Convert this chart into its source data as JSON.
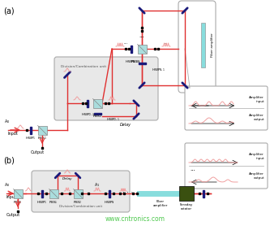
{
  "fig_width": 3.33,
  "fig_height": 2.83,
  "dpi": 100,
  "bg_color": "#ffffff",
  "label_a": "(a)",
  "label_b": "(b)",
  "watermark": "www.cntronics.com",
  "fiber_amp_label": "Fiber amplifier",
  "faraday_label": "Faraday\nrotator",
  "div_combo_label_a": "Division/Combination unit",
  "div_combo_label_b": "Division/Combination unit",
  "delay_label": "Delay",
  "fiber_amp_label2": "Fiber\namplifier",
  "amp_input_label": "Amplifier\ninput",
  "amp_output_label": "Amplifier\noutput",
  "input_label": "Input",
  "output_label": "Output",
  "red": "#e03030",
  "pink": "#f0a0a0",
  "dblue": "#1a1a7a",
  "cyan": "#aadddd",
  "dgreen": "#3a5010",
  "lcyan": "#88dddd",
  "black": "#000000",
  "gray_box": "#e8e8e8",
  "box_edge": "#aaaaaa",
  "white": "#ffffff"
}
